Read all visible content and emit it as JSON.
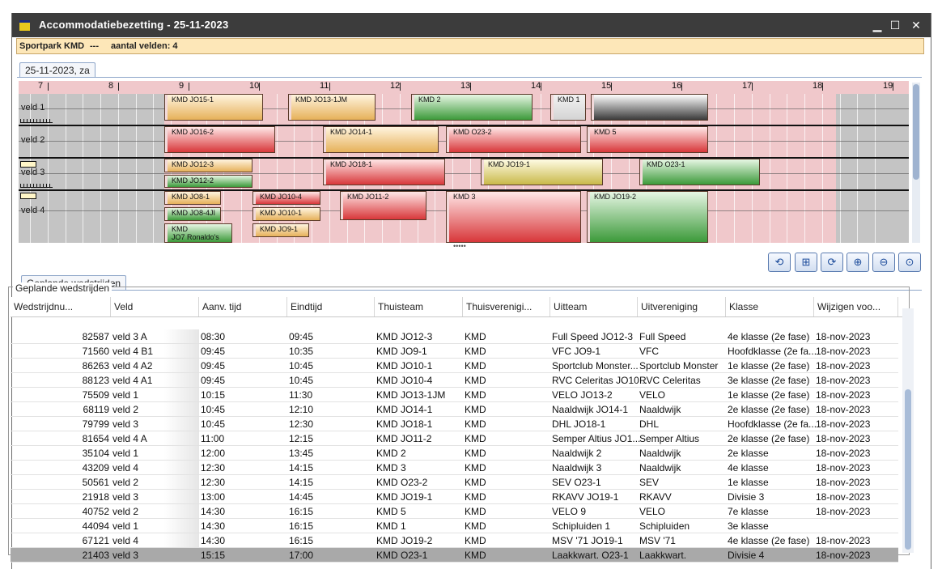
{
  "window": {
    "title": "Accommodatiebezetting - 25-11-2023",
    "minimize": "▁",
    "maximize": "☐",
    "close": "✕"
  },
  "info": {
    "venue": "Sportpark KMD",
    "separator": "---",
    "fields_label": "aantal velden: 4"
  },
  "date_tab": "25-11-2023, za",
  "schedule": {
    "hours": [
      "7",
      "8",
      "9",
      "10",
      "11",
      "12",
      "13",
      "14",
      "15",
      "16",
      "17",
      "18",
      "19"
    ],
    "fields": [
      "veld 1",
      "veld 2",
      "veld 3",
      "veld 4"
    ],
    "bookings": [
      {
        "field": "veld 1",
        "label": "KMD JO15-1",
        "color": "orange"
      },
      {
        "field": "veld 1",
        "label": "KMD JO13-1JM",
        "color": "orange"
      },
      {
        "field": "veld 1",
        "label": "KMD 2",
        "color": "green"
      },
      {
        "field": "veld 1",
        "label": "KMD 1",
        "color": "grey"
      },
      {
        "field": "veld 1",
        "label": "",
        "color": "dark"
      },
      {
        "field": "veld 2",
        "label": "KMD JO16-2",
        "color": "red"
      },
      {
        "field": "veld 2",
        "label": "KMD JO14-1",
        "color": "orange"
      },
      {
        "field": "veld 2",
        "label": "KMD O23-2",
        "color": "red"
      },
      {
        "field": "veld 2",
        "label": "KMD 5",
        "color": "red"
      },
      {
        "field": "veld 3",
        "label": "KMD JO12-3",
        "color": "orange"
      },
      {
        "field": "veld 3",
        "label": "KMD JO12-2",
        "color": "green"
      },
      {
        "field": "veld 3",
        "label": "KMD JO18-1",
        "color": "red"
      },
      {
        "field": "veld 3",
        "label": "KMD JO19-1",
        "color": "yellow"
      },
      {
        "field": "veld 3",
        "label": "KMD O23-1",
        "color": "green"
      },
      {
        "field": "veld 4",
        "label": "KMD JO8-1",
        "color": "orange"
      },
      {
        "field": "veld 4",
        "label": "KMD JO8-4JI",
        "color": "green"
      },
      {
        "field": "veld 4",
        "label": "KMD",
        "label2": "JO7 Ronaldo's",
        "color": "green"
      },
      {
        "field": "veld 4",
        "label": "KMD JO10-4",
        "color": "red"
      },
      {
        "field": "veld 4",
        "label": "KMD JO10-1",
        "color": "orange"
      },
      {
        "field": "veld 4",
        "label": "KMD JO9-1",
        "color": "orange"
      },
      {
        "field": "veld 4",
        "label": "KMD JO11-2",
        "color": "red"
      },
      {
        "field": "veld 4",
        "label": "KMD 3",
        "color": "red"
      },
      {
        "field": "veld 4",
        "label": "KMD JO19-2",
        "color": "green"
      }
    ]
  },
  "splitter": "•••••",
  "toolbar_icons": [
    "undo-icon",
    "tree-icon",
    "redo-icon",
    "zoom-in-icon",
    "zoom-out-icon",
    "zoom-fit-icon"
  ],
  "matches_tab": "Geplande wedstrijden",
  "group_title": "Geplande wedstrijden",
  "table": {
    "columns": [
      "Wedstrijdnu...",
      "Veld",
      "Aanv. tijd",
      "Eindtijd",
      "Thuisteam",
      "Thuisverenigi...",
      "Uitteam",
      "Uitvereniging",
      "Klasse",
      "Wijzigen voo..."
    ],
    "rows": [
      [
        "82587",
        "veld 3 A",
        "08:30",
        "09:45",
        "KMD JO12-3",
        "KMD",
        "Full Speed JO12-3",
        "Full Speed",
        "4e klasse (2e fase)",
        "18-nov-2023"
      ],
      [
        "71560",
        "veld 4 B1",
        "09:45",
        "10:35",
        "KMD JO9-1",
        "KMD",
        "VFC JO9-1",
        "VFC",
        "Hoofdklasse (2e fa...",
        "18-nov-2023"
      ],
      [
        "86263",
        "veld 4 A2",
        "09:45",
        "10:45",
        "KMD JO10-1",
        "KMD",
        "Sportclub Monster...",
        "Sportclub Monster",
        "1e klasse (2e fase)",
        "18-nov-2023"
      ],
      [
        "88123",
        "veld 4 A1",
        "09:45",
        "10:45",
        "KMD JO10-4",
        "KMD",
        "RVC Celeritas JO10...",
        "RVC Celeritas",
        "3e klasse (2e fase)",
        "18-nov-2023"
      ],
      [
        "75509",
        "veld 1",
        "10:15",
        "11:30",
        "KMD JO13-1JM",
        "KMD",
        "VELO JO13-2",
        "VELO",
        "1e klasse (2e fase)",
        "18-nov-2023"
      ],
      [
        "68119",
        "veld 2",
        "10:45",
        "12:10",
        "KMD JO14-1",
        "KMD",
        "Naaldwijk JO14-1",
        "Naaldwijk",
        "2e klasse (2e fase)",
        "18-nov-2023"
      ],
      [
        "79799",
        "veld 3",
        "10:45",
        "12:30",
        "KMD JO18-1",
        "KMD",
        "DHL JO18-1",
        "DHL",
        "Hoofdklasse (2e fa...",
        "18-nov-2023"
      ],
      [
        "81654",
        "veld 4 A",
        "11:00",
        "12:15",
        "KMD JO11-2",
        "KMD",
        "Semper Altius JO1...",
        "Semper Altius",
        "2e klasse (2e fase)",
        "18-nov-2023"
      ],
      [
        "35104",
        "veld 1",
        "12:00",
        "13:45",
        "KMD 2",
        "KMD",
        "Naaldwijk 2",
        "Naaldwijk",
        "2e klasse",
        "18-nov-2023"
      ],
      [
        "43209",
        "veld 4",
        "12:30",
        "14:15",
        "KMD 3",
        "KMD",
        "Naaldwijk 3",
        "Naaldwijk",
        "4e klasse",
        "18-nov-2023"
      ],
      [
        "50561",
        "veld 2",
        "12:30",
        "14:15",
        "KMD O23-2",
        "KMD",
        "SEV O23-1",
        "SEV",
        "1e klasse",
        "18-nov-2023"
      ],
      [
        "21918",
        "veld 3",
        "13:00",
        "14:45",
        "KMD JO19-1",
        "KMD",
        "RKAVV JO19-1",
        "RKAVV",
        "Divisie 3",
        "18-nov-2023"
      ],
      [
        "40752",
        "veld 2",
        "14:30",
        "16:15",
        "KMD 5",
        "KMD",
        "VELO 9",
        "VELO",
        "7e klasse",
        "18-nov-2023"
      ],
      [
        "44094",
        "veld 1",
        "14:30",
        "16:15",
        "KMD 1",
        "KMD",
        "Schipluiden 1",
        "Schipluiden",
        "3e klasse",
        ""
      ],
      [
        "67121",
        "veld 4",
        "14:30",
        "16:15",
        "KMD JO19-2",
        "KMD",
        "MSV '71 JO19-1",
        "MSV '71",
        "4e klasse (2e fase)",
        "18-nov-2023"
      ],
      [
        "21403",
        "veld 3",
        "15:15",
        "17:00",
        "KMD O23-1",
        "KMD",
        "Laakkwart. O23-1",
        "Laakkwart.",
        "Divisie 4",
        "18-nov-2023"
      ]
    ],
    "selected_row": 15
  }
}
